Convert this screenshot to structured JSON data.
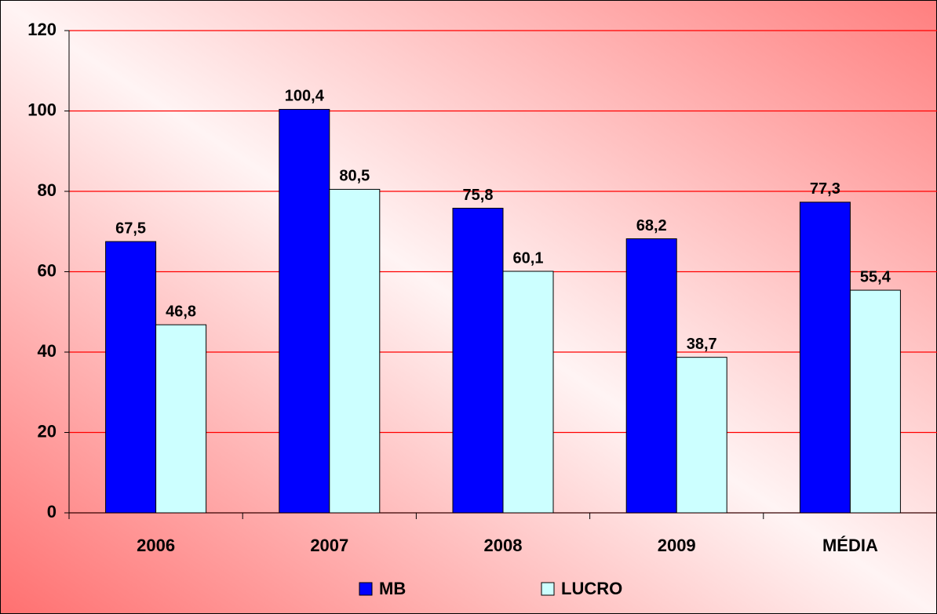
{
  "chart_data": {
    "type": "bar",
    "categories": [
      "2006",
      "2007",
      "2008",
      "2009",
      "MÉDIA"
    ],
    "series": [
      {
        "name": "MB",
        "color": "#0000ff",
        "values": [
          67.5,
          100.4,
          75.8,
          68.2,
          77.3
        ],
        "value_labels": [
          "67,5",
          "100,4",
          "75,8",
          "68,2",
          "77,3"
        ]
      },
      {
        "name": "LUCRO",
        "color": "#ccffff",
        "values": [
          46.8,
          80.5,
          60.1,
          38.7,
          55.4
        ],
        "value_labels": [
          "46,8",
          "80,5",
          "60,1",
          "38,7",
          "55,4"
        ]
      }
    ],
    "ylim": [
      0,
      120
    ],
    "yticks": [
      0,
      20,
      40,
      60,
      80,
      100,
      120
    ],
    "grid": true,
    "grid_color": "#ff0000",
    "legend": "bottom"
  }
}
